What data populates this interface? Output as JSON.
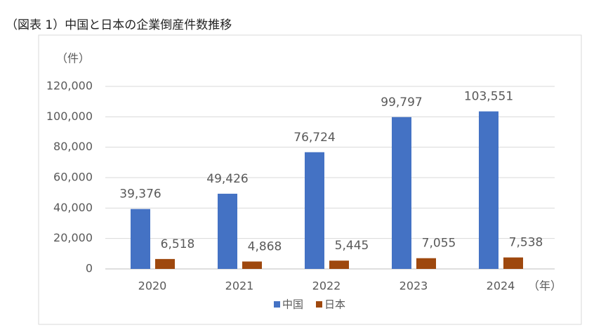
{
  "chart_data": {
    "type": "bar",
    "title": "（図表 1）中国と日本の企業倒産件数推移",
    "y_unit": "（件）",
    "x_unit": "（年）",
    "categories": [
      "2020",
      "2021",
      "2022",
      "2023",
      "2024"
    ],
    "series": [
      {
        "name": "中国",
        "color": "#4472c4",
        "values": [
          39376,
          49426,
          76724,
          99797,
          103551
        ],
        "value_labels": [
          "39,376",
          "49,426",
          "76,724",
          "99,797",
          "103,551"
        ]
      },
      {
        "name": "日本",
        "color": "#9e480e",
        "values": [
          6518,
          4868,
          5445,
          7055,
          7538
        ],
        "value_labels": [
          "6,518",
          "4,868",
          "5,445",
          "7,055",
          "7,538"
        ]
      }
    ],
    "ylim": [
      0,
      120000
    ],
    "yticks": [
      0,
      {
        "value": 20000,
        "label": "20,000"
      },
      {
        "value": 40000,
        "label": "40,000"
      },
      {
        "value": 60000,
        "label": "60,000"
      },
      {
        "value": 80000,
        "label": "80,000"
      },
      {
        "value": 100000,
        "label": "100,000"
      },
      {
        "value": 120000,
        "label": "120,000"
      }
    ],
    "grid": true
  }
}
